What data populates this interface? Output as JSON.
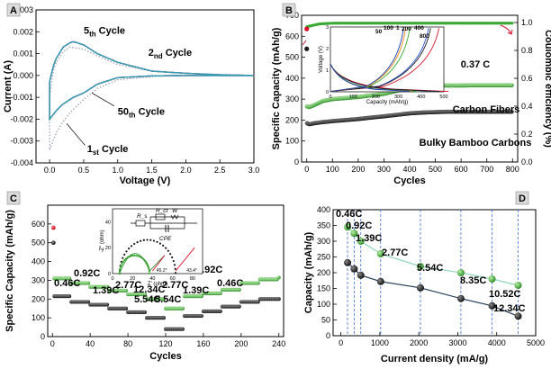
{
  "chart_data": [
    {
      "panel": "A",
      "type": "line",
      "xlabel": "Voltage (V)",
      "ylabel": "Current (A)",
      "xlim": [
        -0.2,
        3.0
      ],
      "ylim": [
        -0.004,
        0.003
      ],
      "xticks": [
        "0.0",
        "0.5",
        "1.0",
        "1.5",
        "2.0",
        "2.5",
        "3.0"
      ],
      "yticks": [
        "-0.004",
        "-0.003",
        "-0.002",
        "-0.001",
        "0.000",
        "0.001",
        "0.002",
        "0.003"
      ],
      "annotations": [
        {
          "text": "5th Cycle",
          "base": "5",
          "sub": "th",
          "tail": " Cycle"
        },
        {
          "text": "2nd Cycle",
          "base": "2",
          "sub": "nd",
          "tail": " Cycle"
        },
        {
          "text": "50th Cycle",
          "base": "50",
          "sub": "th",
          "tail": " Cycle"
        },
        {
          "text": "1st Cycle",
          "base": "1",
          "sub": "st",
          "tail": " Cycle"
        }
      ],
      "series": [
        {
          "name": "1st",
          "color": "#9aa3b5",
          "style": "dotted",
          "x": [
            0.0,
            0.05,
            0.1,
            0.2,
            0.3,
            0.5,
            0.7,
            1.0,
            1.5,
            2.0,
            2.5,
            3.0
          ],
          "y_cathodic": [
            -0.0034,
            -0.003,
            -0.0026,
            -0.0021,
            -0.0017,
            -0.0011,
            -0.0006,
            -0.0002,
            -5e-05,
            0.0,
            0.0,
            0.0
          ],
          "y_anodic": [
            -0.001,
            0.0002,
            0.0006,
            0.0011,
            0.0013,
            0.0012,
            0.0009,
            0.0005,
            0.0002,
            0.0001,
            5e-05,
            0.0
          ]
        },
        {
          "name": "2nd",
          "color": "#9ab7d8",
          "style": "solid",
          "x": [
            0.0,
            0.05,
            0.1,
            0.2,
            0.3,
            0.35,
            0.5,
            0.7,
            1.0,
            1.5,
            2.0,
            2.5,
            3.0
          ],
          "y_cathodic": [
            -0.002,
            -0.0018,
            -0.0016,
            -0.0013,
            -0.0011,
            -0.001,
            -0.0008,
            -0.0004,
            -0.0001,
            -2e-05,
            0.0,
            0.0,
            0.0
          ],
          "y_anodic": [
            -0.0003,
            0.0004,
            0.0008,
            0.0013,
            0.0015,
            0.00155,
            0.0014,
            0.001,
            0.0006,
            0.0002,
            0.0001,
            3e-05,
            0.0
          ]
        },
        {
          "name": "5th",
          "color": "#d63b5a",
          "style": "solid",
          "x": [
            0.0,
            0.05,
            0.1,
            0.2,
            0.3,
            0.35,
            0.5,
            0.7,
            1.0,
            1.5,
            2.0,
            2.5,
            3.0
          ],
          "y_cathodic": [
            -0.002,
            -0.0018,
            -0.0016,
            -0.0013,
            -0.0011,
            -0.001,
            -0.0008,
            -0.0004,
            -0.0001,
            -2e-05,
            0.0,
            0.0,
            0.0
          ],
          "y_anodic": [
            -0.0003,
            0.0004,
            0.0008,
            0.0013,
            0.0015,
            0.00155,
            0.0014,
            0.001,
            0.0006,
            0.0002,
            0.0001,
            3e-05,
            0.0
          ]
        },
        {
          "name": "50th",
          "color": "#2aa0b8",
          "style": "solid",
          "x": [
            0.0,
            0.05,
            0.1,
            0.2,
            0.3,
            0.35,
            0.5,
            0.7,
            1.0,
            1.5,
            2.0,
            2.5,
            3.0
          ],
          "y_cathodic": [
            -0.002,
            -0.0018,
            -0.0016,
            -0.0013,
            -0.0011,
            -0.001,
            -0.0008,
            -0.0004,
            -0.0001,
            -2e-05,
            0.0,
            0.0,
            0.0
          ],
          "y_anodic": [
            -0.0003,
            0.0004,
            0.0008,
            0.0013,
            0.0015,
            0.00155,
            0.0014,
            0.001,
            0.0006,
            0.0002,
            0.0001,
            3e-05,
            0.0
          ]
        }
      ]
    },
    {
      "panel": "B",
      "type": "scatter",
      "xlabel": "Cycles",
      "ylabel": "Specific Capacity (mAh/g)",
      "y2label": "Coulombic efficiency (%)",
      "xlim": [
        -20,
        820
      ],
      "ylim": [
        0,
        700
      ],
      "y2lim": [
        0.0,
        1.0
      ],
      "xticks": [
        "0",
        "100",
        "200",
        "300",
        "400",
        "500",
        "600",
        "700",
        "800"
      ],
      "yticks": [
        "0",
        "100",
        "200",
        "300",
        "400",
        "500",
        "600",
        "700"
      ],
      "y2ticks": [
        "0.0",
        "0.2",
        "0.4",
        "0.6",
        "0.8",
        "1.0"
      ],
      "rate_label": "0.37 C",
      "series": [
        {
          "name": "Carbon Fibers",
          "color": "#3aa832",
          "x": [
            1,
            10,
            30,
            60,
            100,
            150,
            200,
            250,
            300,
            350,
            400,
            450,
            500,
            550,
            600,
            650,
            700,
            750,
            800
          ],
          "y": [
            265,
            262,
            272,
            290,
            300,
            305,
            310,
            318,
            325,
            340,
            352,
            360,
            365,
            365,
            365,
            366,
            366,
            366,
            366
          ]
        },
        {
          "name": "Bulky Bamboo Carbons",
          "color": "#1a1a1a",
          "x": [
            1,
            10,
            30,
            60,
            100,
            150,
            200,
            250,
            300,
            350,
            400,
            450,
            500,
            550,
            600,
            650,
            700,
            750,
            800
          ],
          "y": [
            185,
            180,
            185,
            190,
            195,
            200,
            205,
            212,
            218,
            225,
            232,
            236,
            238,
            240,
            240,
            240,
            240,
            240,
            240
          ]
        },
        {
          "name": "Coulombic efficiency",
          "color": "#3aa832",
          "x": [
            1,
            50,
            100,
            200,
            300,
            400,
            500,
            600,
            700,
            800
          ],
          "y": [
            0.97,
            0.99,
            0.995,
            0.995,
            0.995,
            0.995,
            0.995,
            0.995,
            0.995,
            0.995
          ]
        }
      ],
      "first_cycle_points": [
        {
          "color": "#d8102a",
          "x": 0,
          "y": 635
        },
        {
          "color": "#1a1a1a",
          "x": 0,
          "y": 540
        }
      ],
      "inset": {
        "xlabel": "Capacity (mAh/g)",
        "ylabel": "Voltage (V)",
        "xticks": [
          "0",
          "100",
          "200",
          "300",
          "400",
          "500"
        ],
        "yticks": [
          "0",
          "1",
          "2",
          "3"
        ],
        "curve_labels": [
          {
            "text": "50",
            "color": "#d8102a"
          },
          {
            "text": "100",
            "color": "#1a4fd6"
          },
          {
            "text": "1",
            "color": "#1a1a1a"
          },
          {
            "text": "200",
            "color": "#3aa832"
          },
          {
            "text": "400",
            "color": "#e08a10"
          },
          {
            "text": "800",
            "color": "#1a3fb8"
          }
        ]
      }
    },
    {
      "panel": "C",
      "type": "scatter",
      "xlabel": "Cycles",
      "ylabel": "Specific Capacity (mAh/g)",
      "xlim": [
        -5,
        245
      ],
      "ylim": [
        0,
        700
      ],
      "xticks": [
        "0",
        "40",
        "80",
        "120",
        "160",
        "200",
        "240"
      ],
      "yticks": [
        "0",
        "100",
        "200",
        "300",
        "400",
        "500",
        "600"
      ],
      "rate_labels": [
        "0.46C",
        "0.92C",
        "1.39C",
        "2.77C",
        "5.54C",
        "12.34C",
        "5.54C",
        "2.77C",
        "1.39C",
        "0.92C",
        "0.46C"
      ],
      "series": [
        {
          "name": "Carbon Fibers",
          "color": "#3aa832",
          "x": [
            5,
            20,
            40,
            60,
            80,
            100,
            120,
            140,
            160,
            180,
            200,
            220,
            240
          ],
          "y": [
            310,
            285,
            265,
            245,
            225,
            200,
            150,
            215,
            230,
            250,
            285,
            305,
            315
          ]
        },
        {
          "name": "Bulky Bamboo Carbons",
          "color": "#1a1a1a",
          "x": [
            5,
            20,
            40,
            60,
            80,
            100,
            120,
            140,
            160,
            180,
            200,
            220,
            240
          ],
          "y": [
            215,
            185,
            170,
            150,
            130,
            100,
            40,
            110,
            135,
            160,
            185,
            200,
            200
          ]
        }
      ],
      "first_cycle_points": [
        {
          "color": "#d8102a",
          "x": 1,
          "y": 580
        },
        {
          "color": "#1a1a1a",
          "x": 1,
          "y": 500
        }
      ],
      "inset": {
        "xlabel": "Z' (ohm)",
        "ylabel": "-Z'' (ohm)",
        "xticks": [
          "0",
          "20",
          "40",
          "60",
          "80"
        ],
        "yticks": [
          "0",
          "20",
          "40"
        ],
        "circuit_labels": [
          "R_s",
          "R_ct",
          "W",
          "CPE"
        ],
        "value_labels": [
          "45.2°",
          "43.4°"
        ]
      }
    },
    {
      "panel": "D",
      "type": "line",
      "xlabel": "Current density (mA/g)",
      "ylabel": "Capacity (mAh/g)",
      "xlim": [
        -200,
        5000
      ],
      "ylim": [
        0,
        400
      ],
      "xticks": [
        "0",
        "1000",
        "2000",
        "3000",
        "4000",
        "5000"
      ],
      "yticks": [
        "0",
        "50",
        "100",
        "150",
        "200",
        "250",
        "300",
        "350",
        "400"
      ],
      "rate_labels": [
        "0.46C",
        "0.92C",
        "1.39C",
        "2.77C",
        "5.54C",
        "8.35C",
        "10.52C",
        "12.34C"
      ],
      "categories_x": [
        170,
        340,
        510,
        1020,
        2040,
        3080,
        3880,
        4550
      ],
      "series": [
        {
          "name": "Carbon Fibers",
          "color": "#3aa832",
          "line": "#8fd6b8",
          "y": [
            345,
            325,
            300,
            260,
            220,
            200,
            180,
            160
          ]
        },
        {
          "name": "Bulky Bamboo Carbons",
          "color": "#1a1a1a",
          "line": "#1f3a5a",
          "y": [
            232,
            212,
            192,
            172,
            152,
            118,
            95,
            62
          ]
        }
      ]
    }
  ],
  "panels": {
    "A": {
      "tag": "A"
    },
    "B": {
      "tag": "B"
    },
    "C": {
      "tag": "C"
    },
    "D": {
      "tag": "D"
    }
  }
}
